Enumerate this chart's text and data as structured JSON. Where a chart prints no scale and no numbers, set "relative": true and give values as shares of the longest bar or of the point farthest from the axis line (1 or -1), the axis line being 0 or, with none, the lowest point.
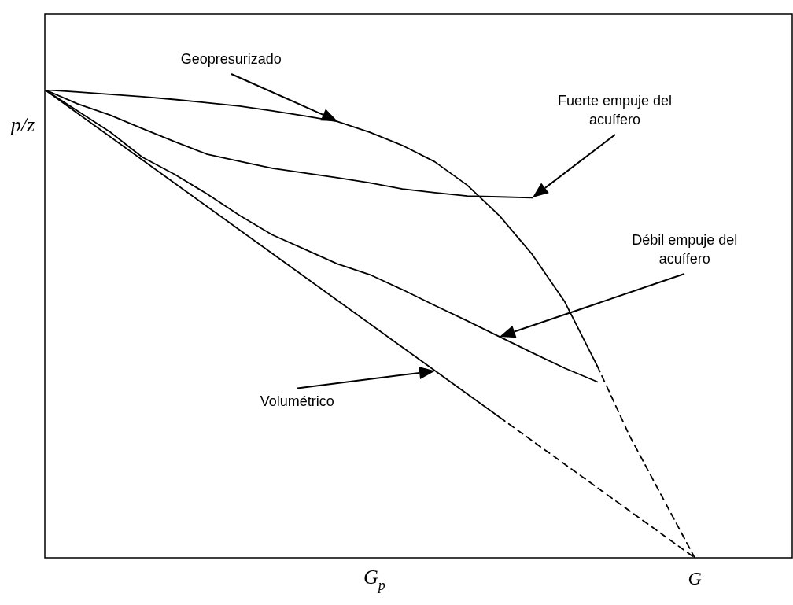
{
  "chart_data": {
    "type": "line",
    "relative": true,
    "xlabel": "G$_{p}$",
    "ylabel": "p/z",
    "grid": false,
    "legend": false,
    "marker": "none",
    "categories": [
      null,
      null,
      null,
      null,
      null,
      null,
      null,
      null,
      null,
      null,
      null,
      null,
      null,
      null,
      null,
      null,
      null,
      null,
      null,
      null,
      null,
      null,
      null,
      null
    ],
    "series": [
      {
        "color": "#000000",
        "line_style": "solid",
        "values": [
          1,
          0.95,
          0.9,
          0.85,
          0.8,
          0.75,
          0.7,
          0.65,
          0.6,
          0.55,
          0.5,
          0.45,
          0.4,
          0.35,
          0.3,
          null,
          null,
          null,
          null,
          null,
          null,
          null,
          null,
          null
        ]
      },
      {
        "color": "#000000",
        "line_style": "dashed",
        "values": [
          null,
          null,
          null,
          null,
          null,
          null,
          null,
          null,
          null,
          null,
          null,
          null,
          null,
          null,
          0.3,
          0.25,
          0.2,
          0.15,
          0.1,
          0.05,
          0,
          null,
          null,
          null
        ]
      },
      {
        "color": "#000000",
        "line_style": "solid",
        "values": [
          1,
          0.995,
          0.99,
          0.985,
          0.979,
          0.972,
          0.965,
          0.955,
          0.944,
          0.932,
          0.909,
          0.881,
          0.846,
          0.796,
          0.73,
          0.648,
          0.547,
          0.41,
          null,
          null,
          null,
          null,
          null,
          null
        ]
      },
      {
        "color": "#000000",
        "line_style": "dashed",
        "values": [
          null,
          null,
          null,
          null,
          null,
          null,
          null,
          null,
          null,
          null,
          null,
          null,
          null,
          null,
          null,
          null,
          null,
          0.41,
          0.26,
          0.13,
          0,
          null,
          null,
          null
        ]
      },
      {
        "color": "#000000",
        "line_style": "solid",
        "values": [
          1,
          0.97,
          0.946,
          0.917,
          0.889,
          0.862,
          0.847,
          0.832,
          0.822,
          0.812,
          0.801,
          0.788,
          0.78,
          0.773,
          0.771,
          0.769,
          null,
          null,
          null,
          null,
          null,
          null,
          null,
          null
        ]
      },
      {
        "color": "#000000",
        "line_style": "solid",
        "values": [
          1,
          0.955,
          0.91,
          0.856,
          0.819,
          0.777,
          0.731,
          0.69,
          0.659,
          0.628,
          0.605,
          0.573,
          0.539,
          0.506,
          0.472,
          0.438,
          0.405,
          0.376,
          null,
          null,
          null,
          null,
          null,
          null
        ]
      }
    ],
    "annotations": [
      "Geopresurizado",
      "Fuerte empuje del acuífero",
      "Débil empuje del acuífero",
      "Volumétrico",
      "G"
    ]
  }
}
